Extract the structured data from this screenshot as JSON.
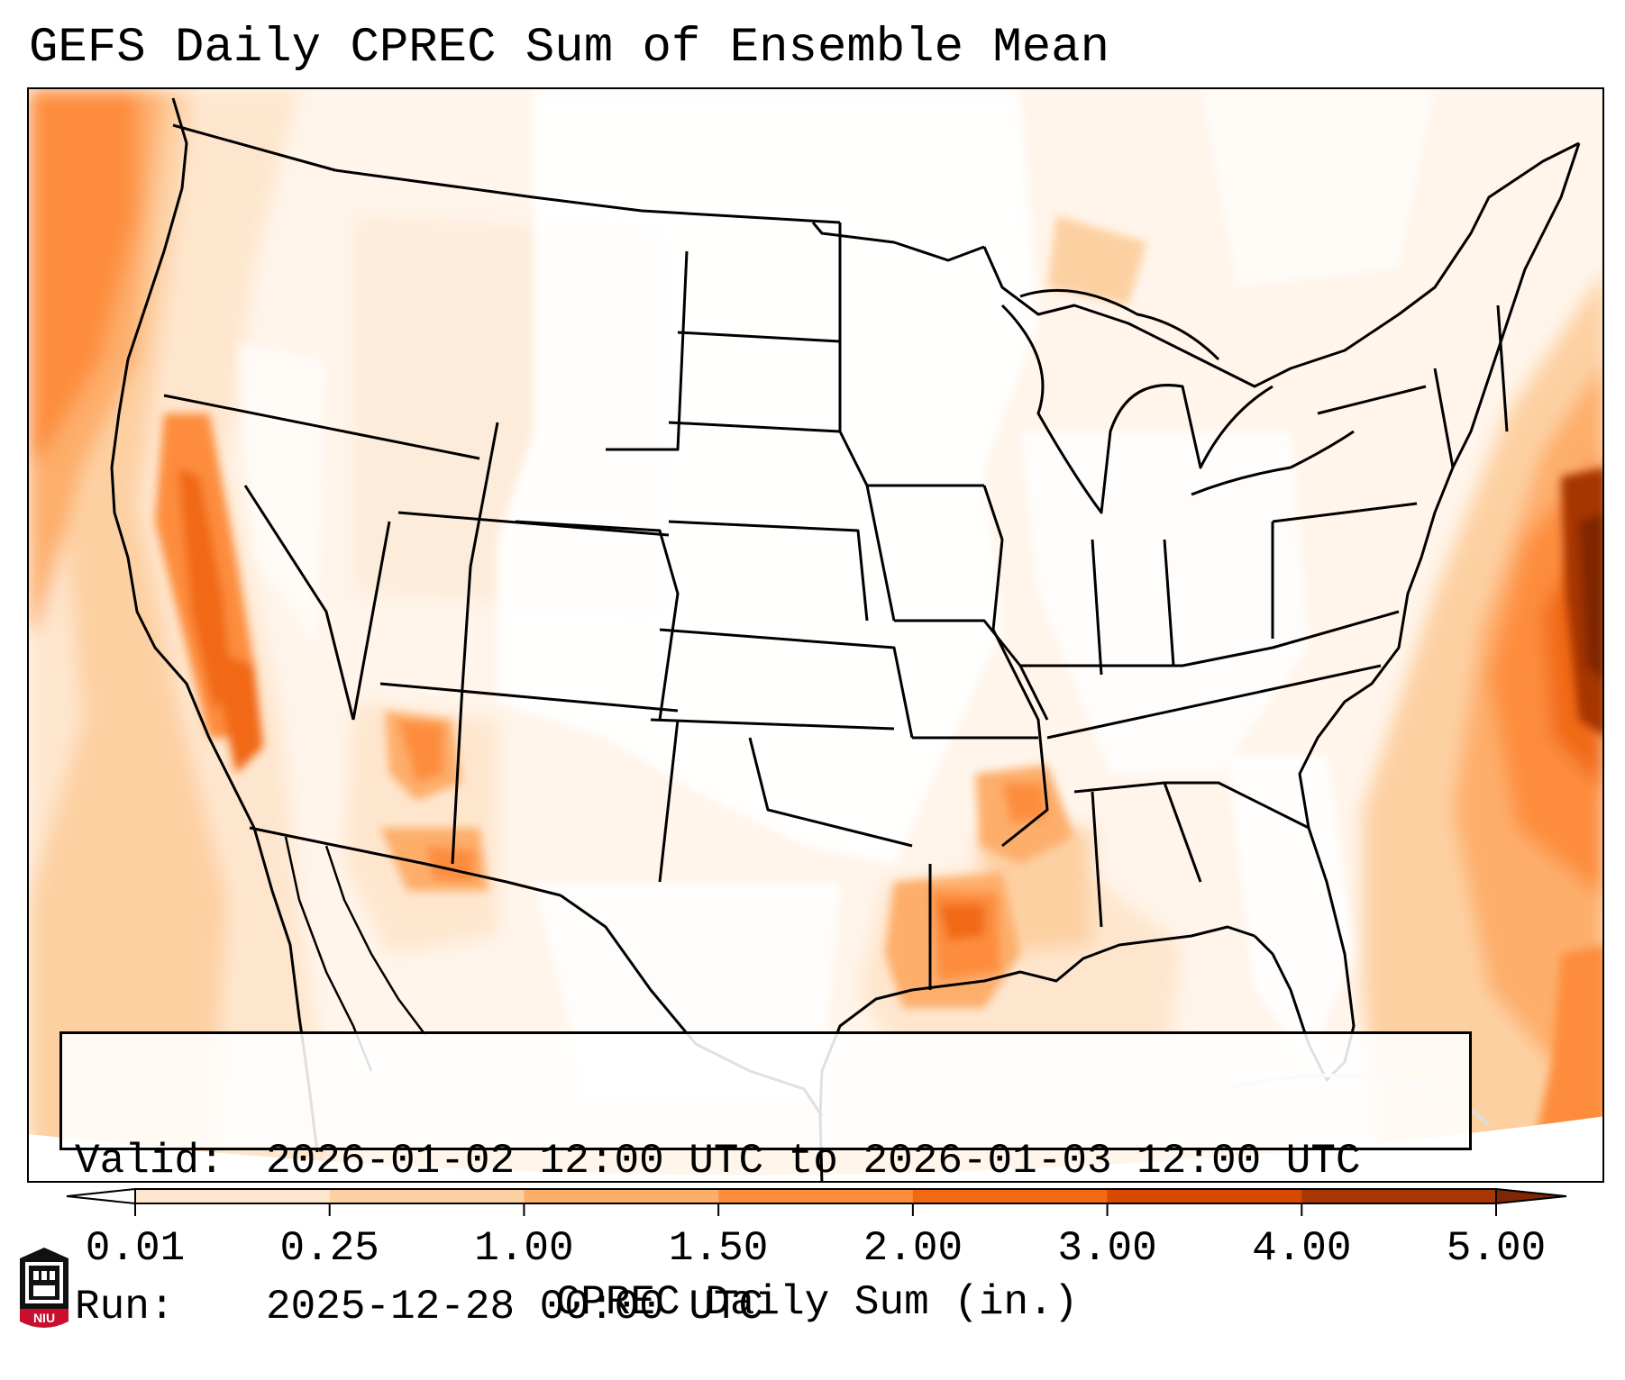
{
  "title": "GEFS Daily CPREC Sum of Ensemble Mean",
  "info": {
    "valid_key": "Valid:",
    "valid_value": "2026-01-02 12:00 UTC to 2026-01-03 12:00 UTC",
    "run_key": "Run:",
    "run_value": "2025-12-28 00:00 UTC"
  },
  "colorbar": {
    "label": "CPREC Daily Sum (in.)",
    "ticks": [
      "0.01",
      "0.25",
      "1.00",
      "1.50",
      "2.00",
      "3.00",
      "4.00",
      "5.00"
    ],
    "colors": [
      "#fee6ce",
      "#fdd0a2",
      "#fdae6b",
      "#fd8d3c",
      "#f16913",
      "#d94801",
      "#a63603",
      "#7f2704"
    ],
    "extend": "both"
  },
  "logo": {
    "text": "NIU",
    "icon": "niu-tower-logo-icon"
  },
  "map": {
    "region": "Continental United States",
    "field": "CPREC daily sum, ensemble mean"
  }
}
